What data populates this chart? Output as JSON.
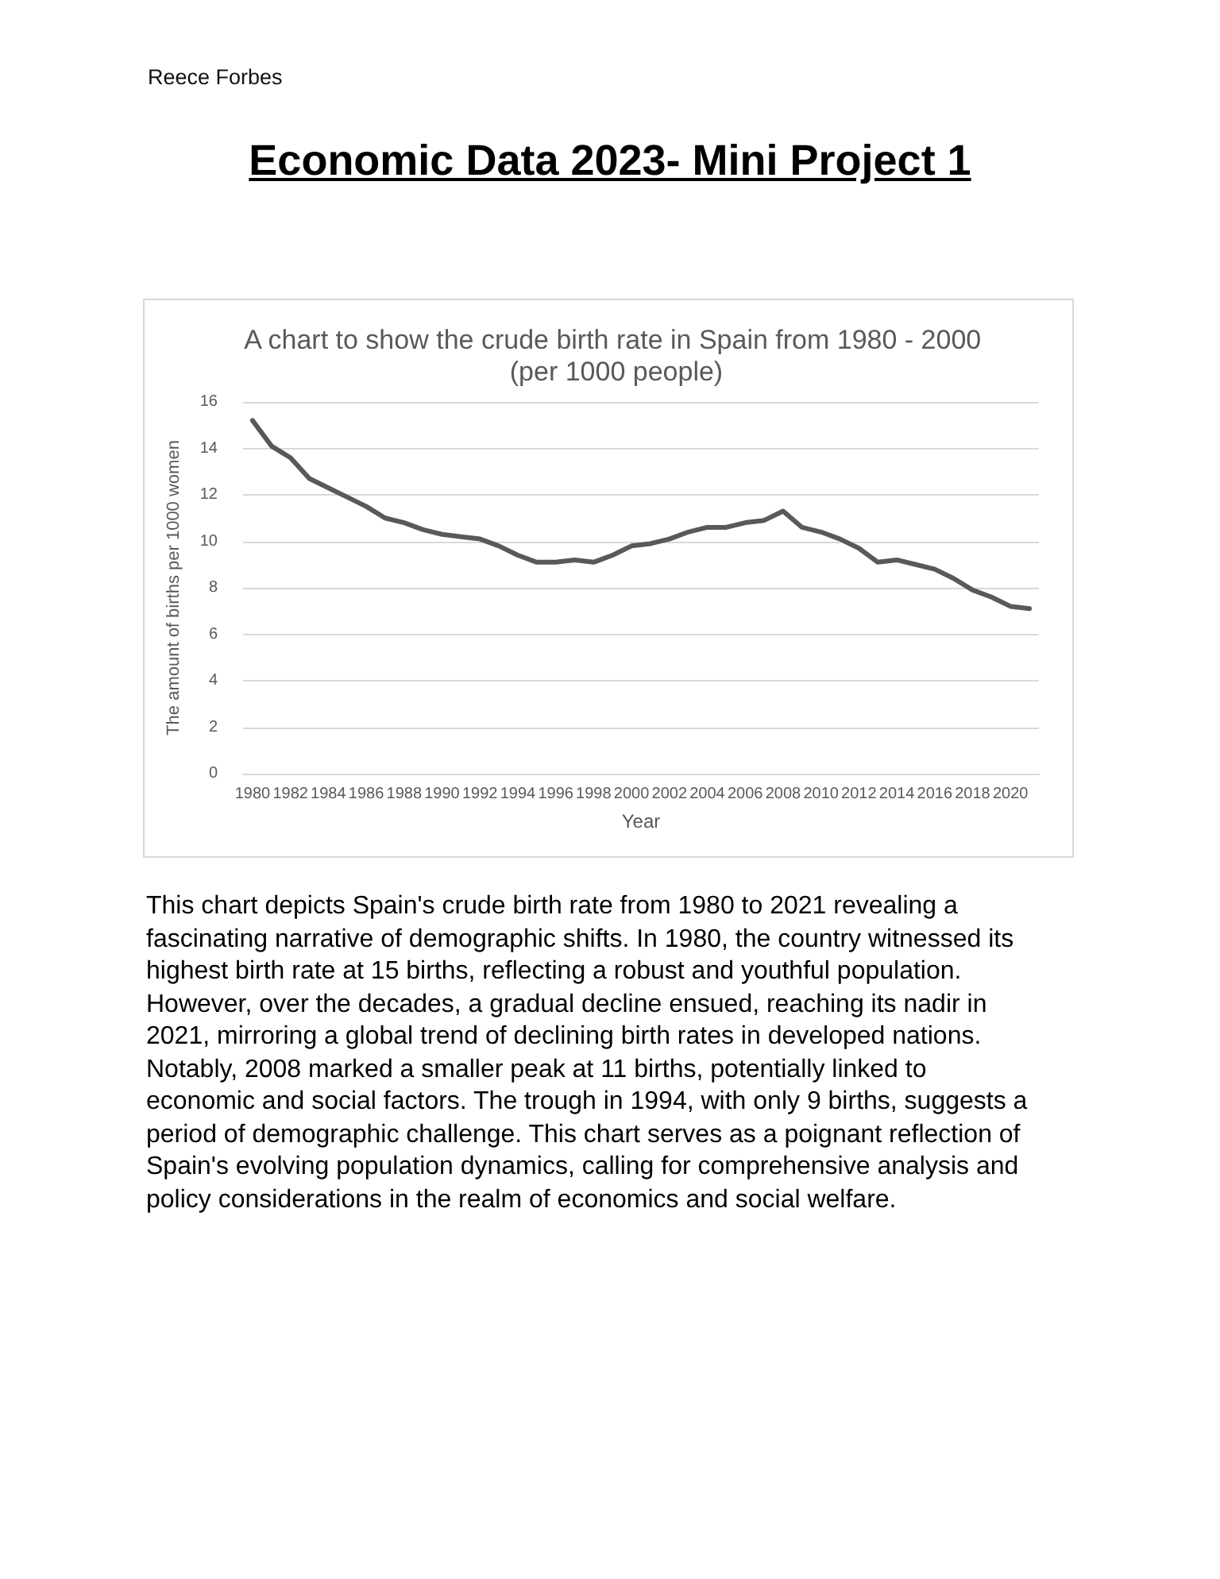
{
  "chart_data": {
    "type": "line",
    "title": "A chart to show the crude birth rate in Spain from 1980 - 2000 (per 1000 people)",
    "xlabel": "Year",
    "ylabel": "The amount of births per 1000 women",
    "categories": [
      "1980",
      null,
      "1982",
      null,
      "1984",
      null,
      "1986",
      null,
      "1988",
      null,
      "1990",
      null,
      "1992",
      null,
      "1994",
      null,
      "1996",
      null,
      "1998",
      null,
      "2000",
      null,
      "2002",
      null,
      "2004",
      null,
      "2006",
      null,
      "2008",
      null,
      "2010",
      null,
      "2012",
      null,
      "2014",
      null,
      "2016",
      null,
      "2018",
      null,
      "2020",
      null
    ],
    "values": [
      15.2,
      14.1,
      13.6,
      12.7,
      12.3,
      11.9,
      11.5,
      11.0,
      10.8,
      10.5,
      10.3,
      10.2,
      10.1,
      9.8,
      9.4,
      9.1,
      9.1,
      9.2,
      9.1,
      9.4,
      9.8,
      9.9,
      10.1,
      10.4,
      10.6,
      10.6,
      10.8,
      10.9,
      11.3,
      10.6,
      10.4,
      10.1,
      9.7,
      9.1,
      9.2,
      9.0,
      8.8,
      8.4,
      7.9,
      7.6,
      7.2,
      7.1
    ],
    "color": "#595959",
    "ylim": [
      0,
      16
    ],
    "yticks": [
      0,
      2,
      4,
      6,
      8,
      10,
      12,
      14,
      16
    ],
    "grid": "y",
    "annotations": [
      "Reece Forbes",
      "Economic Data 2023- Mini Project 1",
      "This chart depicts Spain's crude birth rate from 1980 to 2021 revealing a fascinating narrative of demographic shifts. In 1980, the country witnessed its highest birth rate at 15 births, reflecting a robust and youthful population. However, over the decades, a gradual decline ensued, reaching its nadir in 2021, mirroring a global trend of declining birth rates in developed nations. Notably, 2008 marked a smaller peak at 11 births, potentially linked to economic and social factors. The trough in 1994, with only 9 births, suggests a period of demographic challenge. This chart serves as a poignant reflection of Spain's evolving population dynamics, calling for comprehensive analysis and policy considerations in the realm of economics and social welfare."
    ]
  }
}
